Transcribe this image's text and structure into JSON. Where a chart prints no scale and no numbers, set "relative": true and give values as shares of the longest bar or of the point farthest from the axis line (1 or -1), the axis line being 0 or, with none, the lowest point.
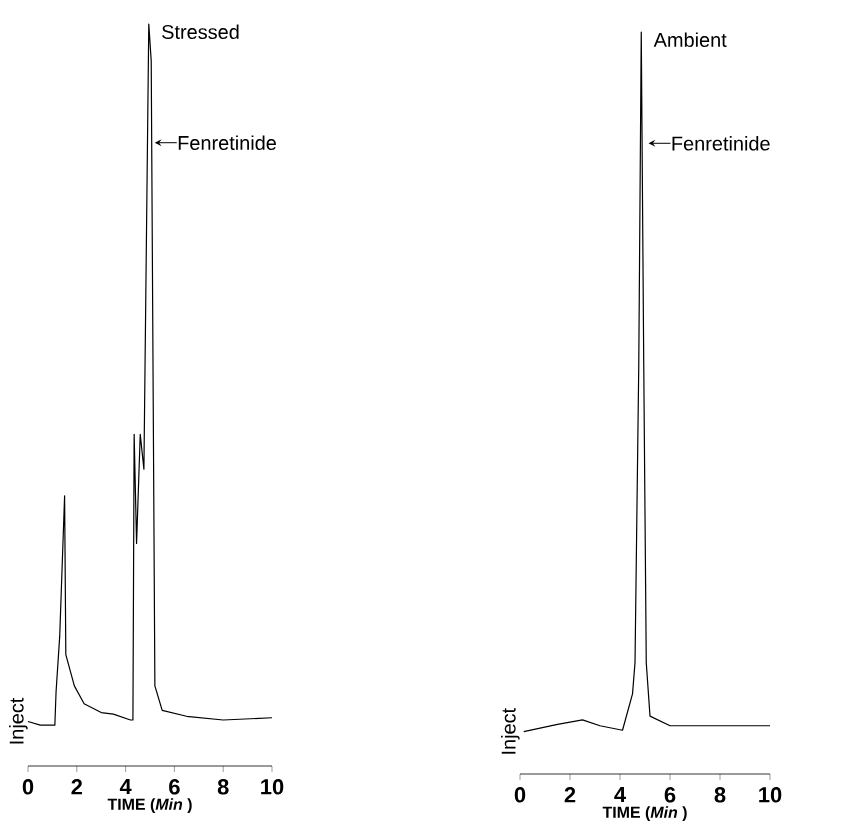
{
  "chart_data": [
    {
      "type": "line",
      "relative": true,
      "title": "Stressed",
      "ylabel": "Inject",
      "xlabel": "TIME (*Min* )",
      "xlim": [
        0,
        10
      ],
      "xticks": [
        0,
        2,
        4,
        6,
        8,
        10
      ],
      "marker": "none",
      "line_style": "solid",
      "annotations": [
        {
          "text": "Fenretinide",
          "x": 4.95,
          "y": 0.84
        }
      ],
      "series": [
        {
          "color": "#000000",
          "x": [
            0,
            0.5,
            1.1,
            1.15,
            1.3,
            1.5,
            1.55,
            1.9,
            2.3,
            3,
            3.5,
            4.2,
            4.3,
            4.35,
            4.45,
            4.6,
            4.75,
            4.95,
            5.05,
            5.2,
            5.5,
            6.5,
            8,
            10
          ],
          "values": [
            0.06,
            0.055,
            0.055,
            0.1,
            0.175,
            0.364,
            0.15,
            0.108,
            0.084,
            0.072,
            0.07,
            0.062,
            0.062,
            0.447,
            0.3,
            0.447,
            0.4,
            1.0,
            0.95,
            0.108,
            0.075,
            0.067,
            0.062,
            0.065
          ]
        }
      ]
    },
    {
      "type": "line",
      "relative": true,
      "title": "Ambient",
      "ylabel": "Inject",
      "xlabel": "TIME (*Min* )",
      "xlim": [
        0,
        10
      ],
      "xticks": [
        0,
        2,
        4,
        6,
        8,
        10
      ],
      "marker": "none",
      "line_style": "solid",
      "annotations": [
        {
          "text": "Fenretinide",
          "x": 4.9,
          "y": 0.85
        }
      ],
      "series": [
        {
          "color": "#000000",
          "x": [
            0.15,
            1.5,
            2.5,
            3.2,
            4.1,
            4.5,
            4.6,
            4.75,
            4.85,
            4.95,
            5.05,
            5.2,
            6,
            10
          ],
          "values": [
            0.057,
            0.067,
            0.073,
            0.065,
            0.059,
            0.108,
            0.15,
            0.55,
            1.0,
            0.55,
            0.15,
            0.078,
            0.065,
            0.065
          ]
        }
      ]
    }
  ]
}
